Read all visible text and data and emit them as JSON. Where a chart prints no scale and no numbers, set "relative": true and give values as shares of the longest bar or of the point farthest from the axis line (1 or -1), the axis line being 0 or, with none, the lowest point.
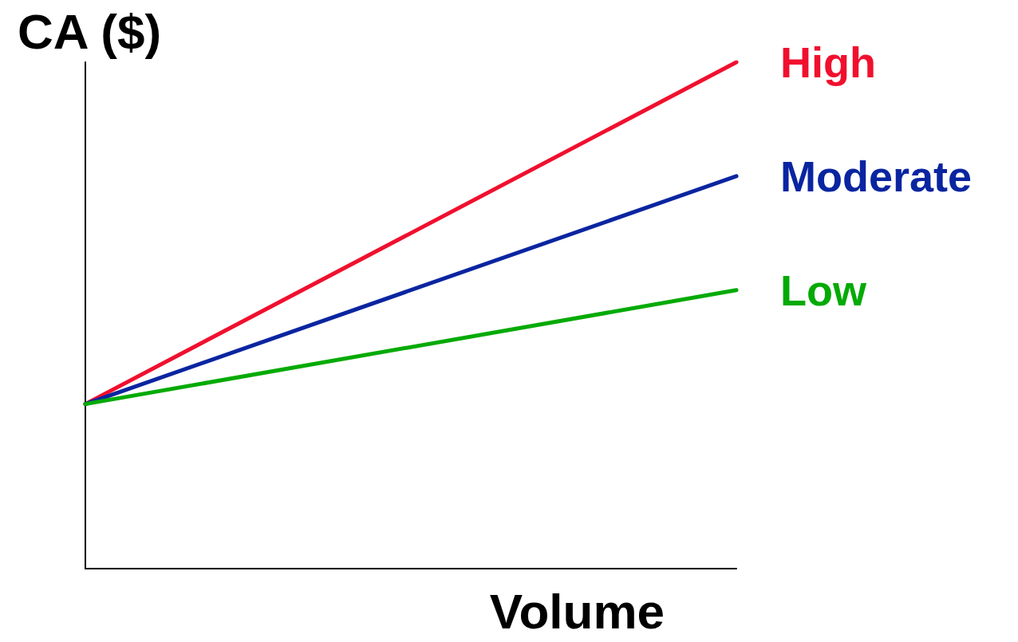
{
  "chart_data": {
    "type": "line",
    "relative": true,
    "ylabel": "CA ($)",
    "xlabel": "Volume",
    "categories": [
      null,
      null
    ],
    "series": [
      {
        "name": "High",
        "color": "#f0102e",
        "values": [
          0.325,
          1
        ]
      },
      {
        "name": "Moderate",
        "color": "#0a25a0",
        "values": [
          0.325,
          0.775
        ]
      },
      {
        "name": "Low",
        "color": "#05aa05",
        "values": [
          0.325,
          0.55
        ]
      }
    ],
    "grid": false,
    "legend": false,
    "marker": "none",
    "line_style": "solid"
  }
}
